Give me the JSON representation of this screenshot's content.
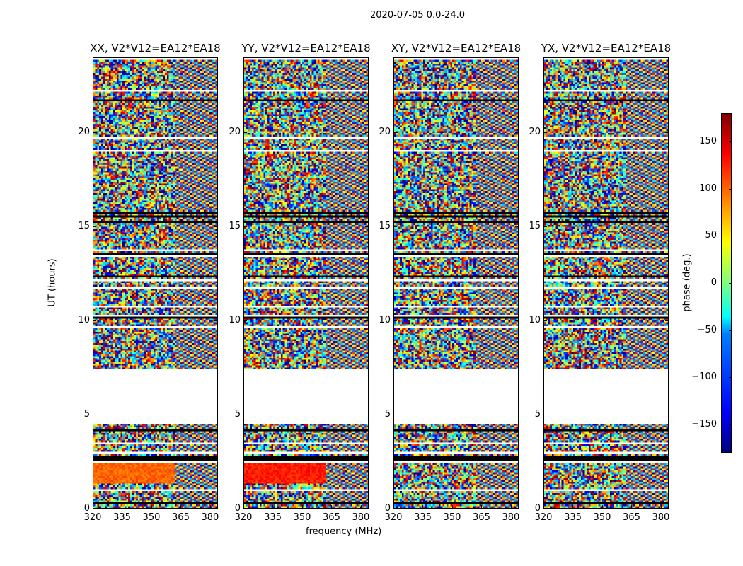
{
  "suptitle": "2020-07-05 0.0-24.0",
  "chart_data": {
    "type": "heatmap",
    "title": "2020-07-05 0.0-24.0",
    "xlabel": "frequency (MHz)",
    "ylabel": "UT (hours)",
    "xlim": [
      320,
      384
    ],
    "ylim": [
      0,
      24
    ],
    "xticks": [
      "320",
      "335",
      "350",
      "365",
      "380"
    ],
    "xtick_values": [
      320,
      335,
      350,
      365,
      380
    ],
    "yticks": [
      "0",
      "5",
      "10",
      "15",
      "20"
    ],
    "ytick_values": [
      0,
      5,
      10,
      15,
      20
    ],
    "panels": [
      {
        "title": "XX, V2*V12=EA12*EA18",
        "coherent_band_hours": [
          1.3,
          2.8
        ],
        "coherent_phase_deg": 100
      },
      {
        "title": "YY, V2*V12=EA12*EA18",
        "coherent_band_hours": [
          1.3,
          2.8
        ],
        "coherent_phase_deg": 125
      },
      {
        "title": "XY, V2*V12=EA12*EA18",
        "coherent_band_hours": null,
        "coherent_phase_deg": null
      },
      {
        "title": "YX, V2*V12=EA12*EA18",
        "coherent_band_hours": null,
        "coherent_phase_deg": null
      }
    ],
    "no_data_hours": [
      4.5,
      7.4
    ],
    "colorbar": {
      "label": "phase (deg.)",
      "range": [
        -180,
        180
      ],
      "ticks": [
        "150",
        "100",
        "50",
        "0",
        "−50",
        "−100",
        "−150"
      ],
      "tick_values": [
        150,
        100,
        50,
        0,
        -50,
        -100,
        -150
      ],
      "colormap": "jet"
    }
  }
}
